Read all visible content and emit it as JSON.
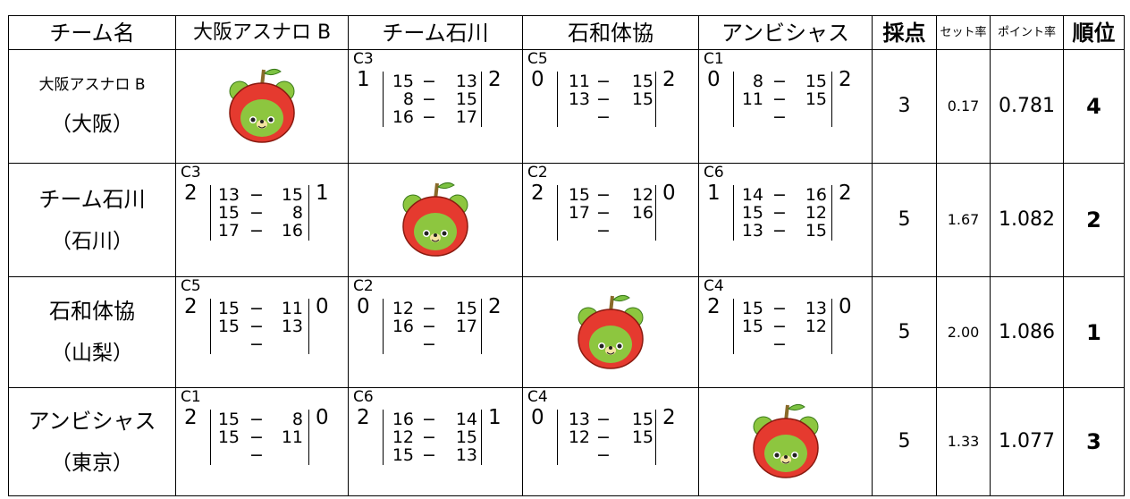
{
  "columns": [
    "チーム名",
    "大阪アスナロ B",
    "チーム石川",
    "石和体協",
    "アンビシャス",
    "採点",
    "セット率",
    "ポイント率",
    "順位"
  ],
  "rows": [
    {
      "team": "大阪アスナロ B",
      "region": "（大阪）",
      "results": [
        null,
        {
          "court": "C3",
          "won": 1,
          "sets": [
            [
              15,
              13
            ],
            [
              8,
              15
            ],
            [
              16,
              17
            ]
          ],
          "lost": 2
        },
        {
          "court": "C5",
          "won": 0,
          "sets": [
            [
              11,
              15
            ],
            [
              13,
              15
            ]
          ],
          "lost": 2
        },
        {
          "court": "C1",
          "won": 0,
          "sets": [
            [
              8,
              15
            ],
            [
              11,
              15
            ]
          ],
          "lost": 2
        }
      ],
      "points": "3",
      "set_ratio": "0.17",
      "point_ratio": "0.781",
      "rank": "4"
    },
    {
      "team": "チーム石川",
      "region": "（石川）",
      "results": [
        {
          "court": "C3",
          "won": 2,
          "sets": [
            [
              13,
              15
            ],
            [
              15,
              8
            ],
            [
              17,
              16
            ]
          ],
          "lost": 1
        },
        null,
        {
          "court": "C2",
          "won": 2,
          "sets": [
            [
              15,
              12
            ],
            [
              17,
              16
            ]
          ],
          "lost": 0
        },
        {
          "court": "C6",
          "won": 1,
          "sets": [
            [
              14,
              16
            ],
            [
              15,
              12
            ],
            [
              13,
              15
            ]
          ],
          "lost": 2
        }
      ],
      "points": "5",
      "set_ratio": "1.67",
      "point_ratio": "1.082",
      "rank": "2"
    },
    {
      "team": "石和体協",
      "region": "（山梨）",
      "results": [
        {
          "court": "C5",
          "won": 2,
          "sets": [
            [
              15,
              11
            ],
            [
              15,
              13
            ]
          ],
          "lost": 0
        },
        {
          "court": "C2",
          "won": 0,
          "sets": [
            [
              12,
              15
            ],
            [
              16,
              17
            ]
          ],
          "lost": 2
        },
        null,
        {
          "court": "C4",
          "won": 2,
          "sets": [
            [
              15,
              13
            ],
            [
              15,
              12
            ]
          ],
          "lost": 0
        }
      ],
      "points": "5",
      "set_ratio": "2.00",
      "point_ratio": "1.086",
      "rank": "1"
    },
    {
      "team": "アンビシャス",
      "region": "（東京）",
      "results": [
        {
          "court": "C1",
          "won": 2,
          "sets": [
            [
              15,
              8
            ],
            [
              15,
              11
            ]
          ],
          "lost": 0
        },
        {
          "court": "C6",
          "won": 2,
          "sets": [
            [
              16,
              14
            ],
            [
              12,
              15
            ],
            [
              15,
              13
            ]
          ],
          "lost": 1
        },
        {
          "court": "C4",
          "won": 0,
          "sets": [
            [
              13,
              15
            ],
            [
              12,
              15
            ]
          ],
          "lost": 2
        },
        null
      ],
      "points": "5",
      "set_ratio": "1.33",
      "point_ratio": "1.077",
      "rank": "3"
    }
  ]
}
